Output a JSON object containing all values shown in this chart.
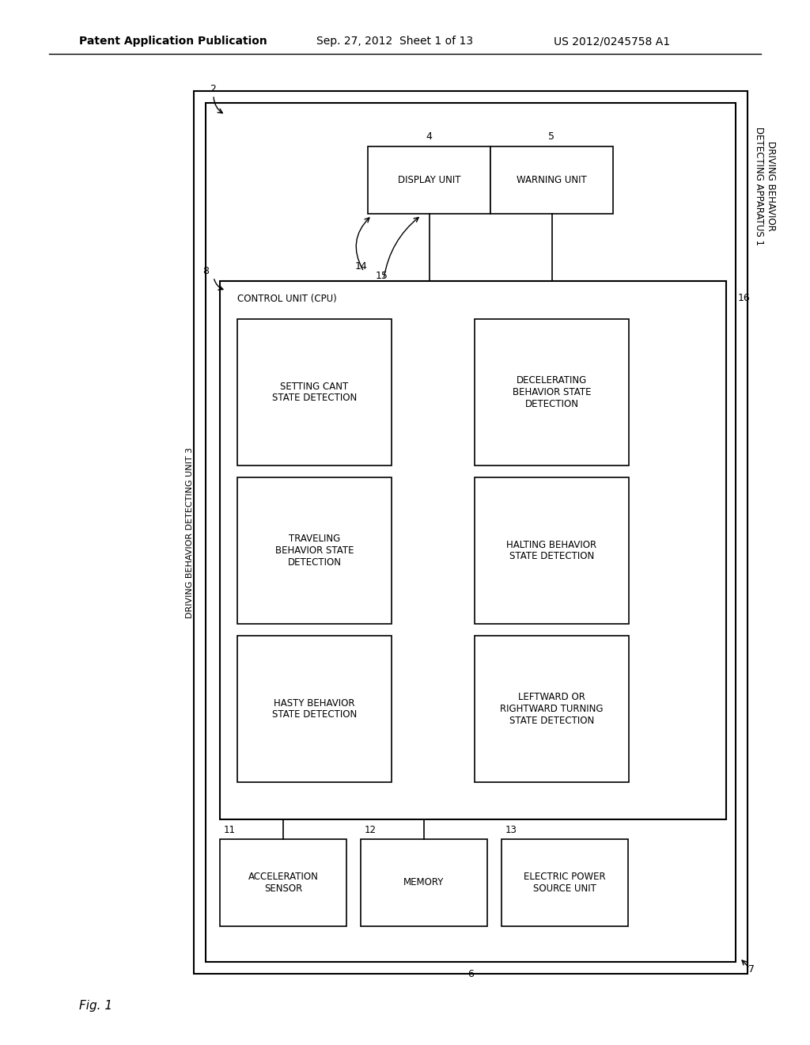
{
  "bg_color": "#ffffff",
  "header_left": "Patent Application Publication",
  "header_center": "Sep. 27, 2012  Sheet 1 of 13",
  "header_right": "US 2012/0245758 A1",
  "fig_label": "Fig. 1",
  "label_apparatus": "DRIVING BEHAVIOR\nDETECTING APPARATUS 1",
  "label_detecting_unit": "DRIVING BEHAVIOR DETECTING UNIT 3",
  "label_control": "CONTROL UNIT (CPU)",
  "box_acceleration": "ACCELERATION\nSENSOR",
  "box_memory": "MEMORY",
  "box_electric": "ELECTRIC POWER\nSOURCE UNIT",
  "box_setting": "SETTING CANT\nSTATE DETECTION",
  "box_traveling": "TRAVELING\nBEHAVIOR STATE\nDETECTION",
  "box_hasty": "HASTY BEHAVIOR\nSTATE DETECTION",
  "box_decelerating": "DECELERATING\nBEHAVIOR STATE\nDETECTION",
  "box_halting": "HALTING BEHAVIOR\nSTATE DETECTION",
  "box_leftward": "LEFTWARD OR\nRIGHTWARD TURNING\nSTATE DETECTION",
  "box_display": "DISPLAY UNIT",
  "box_warning": "WARNING UNIT"
}
